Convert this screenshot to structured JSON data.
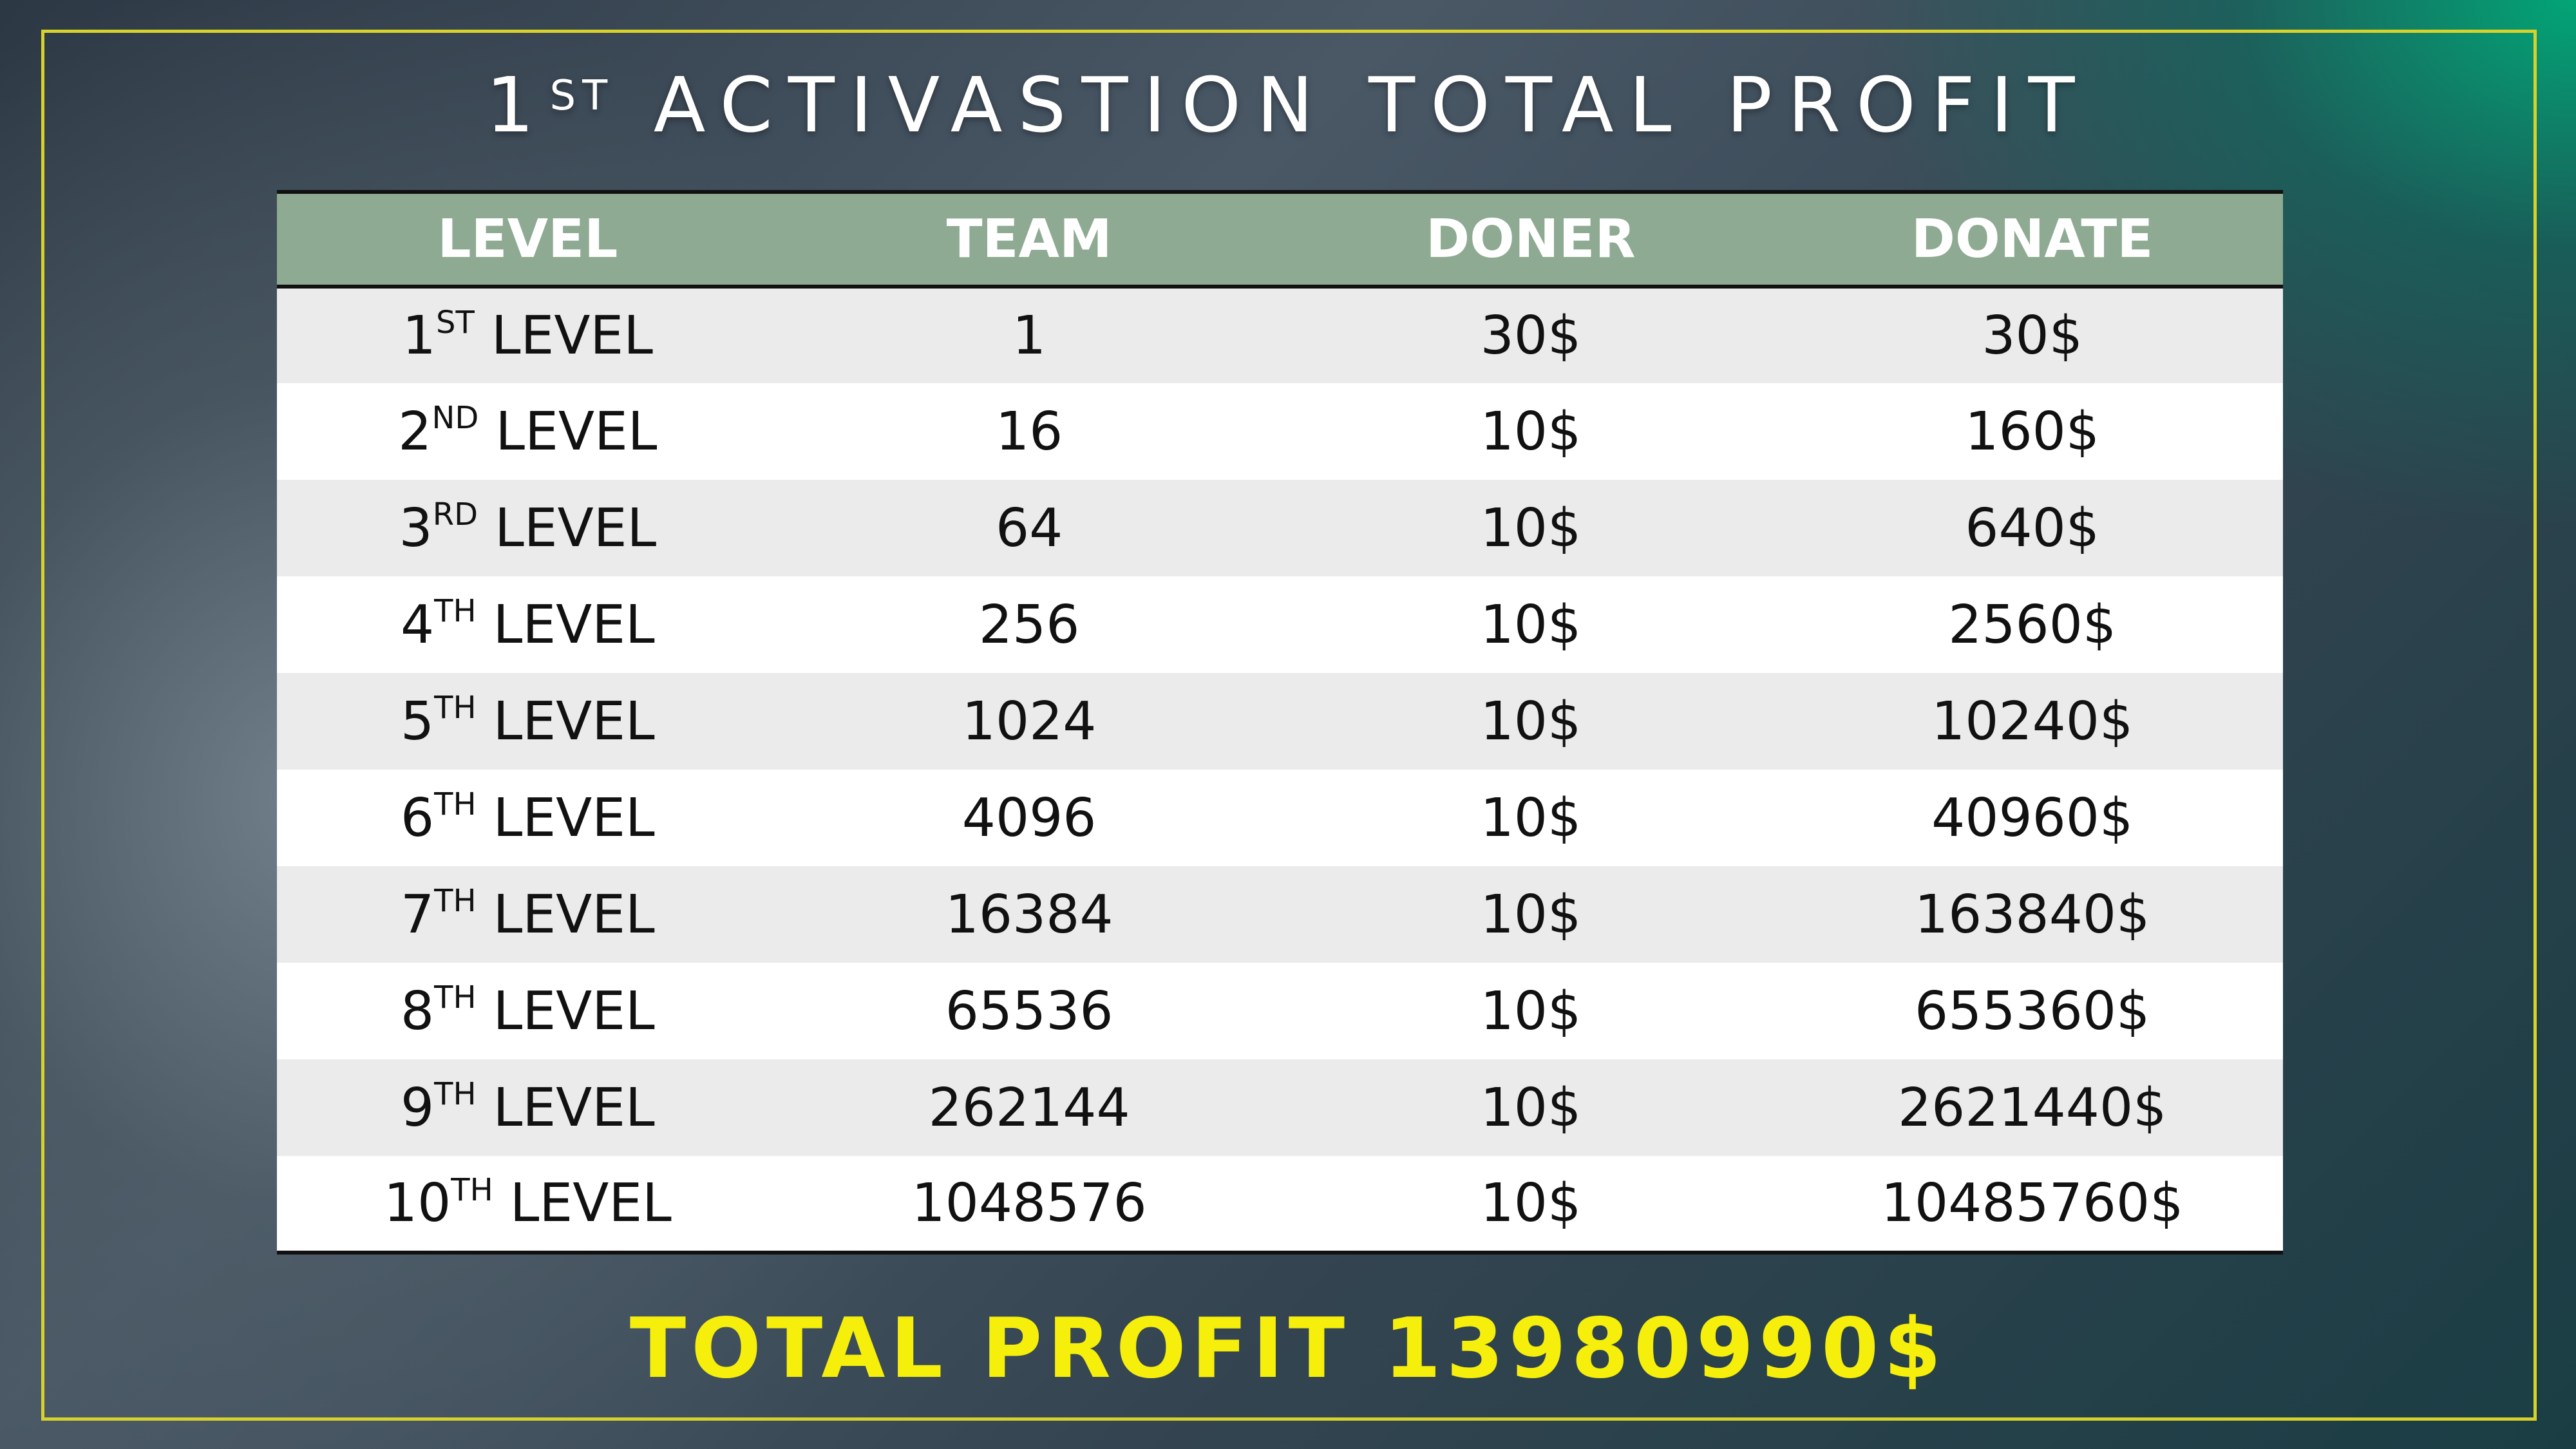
{
  "title": {
    "number": "1",
    "suffix": "ST",
    "text": "ACTIVASTION TOTAL PROFIT"
  },
  "table": {
    "headers": [
      "LEVEL",
      "TEAM",
      "DONER",
      "DONATE"
    ],
    "level_word": "LEVEL",
    "rows": [
      {
        "num": "1",
        "suffix": "ST",
        "team": "1",
        "doner": "30$",
        "donate": "30$"
      },
      {
        "num": "2",
        "suffix": "ND",
        "team": "16",
        "doner": "10$",
        "donate": "160$"
      },
      {
        "num": "3",
        "suffix": "RD",
        "team": "64",
        "doner": "10$",
        "donate": "640$"
      },
      {
        "num": "4",
        "suffix": "TH",
        "team": "256",
        "doner": "10$",
        "donate": "2560$"
      },
      {
        "num": "5",
        "suffix": "TH",
        "team": "1024",
        "doner": "10$",
        "donate": "10240$"
      },
      {
        "num": "6",
        "suffix": "TH",
        "team": "4096",
        "doner": "10$",
        "donate": "40960$"
      },
      {
        "num": "7",
        "suffix": "TH",
        "team": "16384",
        "doner": "10$",
        "donate": "163840$"
      },
      {
        "num": "8",
        "suffix": "TH",
        "team": "65536",
        "doner": "10$",
        "donate": "655360$"
      },
      {
        "num": "9",
        "suffix": "TH",
        "team": "262144",
        "doner": "10$",
        "donate": "2621440$"
      },
      {
        "num": "10",
        "suffix": "TH",
        "team": "1048576",
        "doner": "10$",
        "donate": "10485760$"
      }
    ]
  },
  "total": {
    "text": "TOTAL PROFIT 13980990$"
  },
  "colors": {
    "frame_border": "#d7d22a",
    "header_bg": "#8eaa92",
    "row_alt": "#ebebeb",
    "total_text": "#f6ee0b"
  }
}
